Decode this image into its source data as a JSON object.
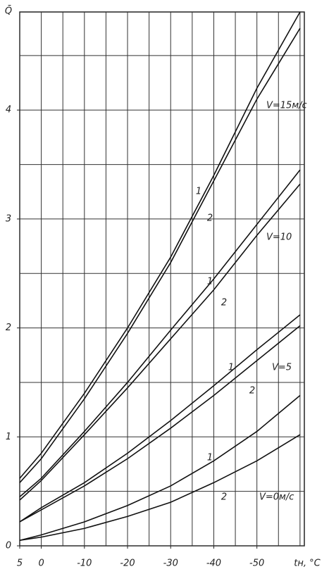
{
  "chart_data": {
    "type": "line",
    "y_label": "Q̄",
    "x_label": "tн, °C",
    "xlim": [
      5,
      -61
    ],
    "ylim": [
      0,
      4.9
    ],
    "xticks": [
      5,
      0,
      -10,
      -20,
      -30,
      -40,
      -50
    ],
    "yticks": [
      0,
      1,
      2,
      3,
      4
    ],
    "xgrid": [
      5,
      0,
      -5,
      -10,
      -15,
      -20,
      -25,
      -30,
      -35,
      -40,
      -45,
      -50,
      -55,
      -60
    ],
    "ygrid": [
      0,
      0.5,
      1,
      1.5,
      2,
      2.5,
      3,
      3.5,
      4,
      4.5
    ],
    "color": "#111111",
    "x": [
      5,
      0,
      -10,
      -20,
      -30,
      -40,
      -50,
      -60
    ],
    "groups": [
      {
        "label": "V=15м/с",
        "series": [
          {
            "name": "1",
            "values": [
              0.62,
              0.85,
              1.4,
              2.0,
              2.65,
              3.4,
              4.2,
              4.9
            ]
          },
          {
            "name": "2",
            "values": [
              0.58,
              0.8,
              1.35,
              1.95,
              2.6,
              3.35,
              4.1,
              4.75
            ]
          }
        ]
      },
      {
        "label": "V=10",
        "series": [
          {
            "name": "1",
            "values": [
              0.45,
              0.62,
              1.05,
              1.5,
              1.98,
              2.45,
              2.95,
              3.45
            ]
          },
          {
            "name": "2",
            "values": [
              0.42,
              0.6,
              1.02,
              1.45,
              1.9,
              2.35,
              2.85,
              3.32
            ]
          }
        ]
      },
      {
        "label": "V=5",
        "series": [
          {
            "name": "1",
            "values": [
              0.22,
              0.35,
              0.58,
              0.85,
              1.15,
              1.47,
              1.8,
              2.12
            ]
          },
          {
            "name": "2",
            "values": [
              0.22,
              0.33,
              0.55,
              0.8,
              1.08,
              1.38,
              1.7,
              2.02
            ]
          }
        ]
      },
      {
        "label": "V=0м/с",
        "series": [
          {
            "name": "1",
            "values": [
              0.05,
              0.1,
              0.22,
              0.37,
              0.55,
              0.78,
              1.05,
              1.38
            ]
          },
          {
            "name": "2",
            "values": [
              0.05,
              0.08,
              0.16,
              0.27,
              0.4,
              0.58,
              0.78,
              1.02
            ]
          }
        ]
      }
    ]
  }
}
